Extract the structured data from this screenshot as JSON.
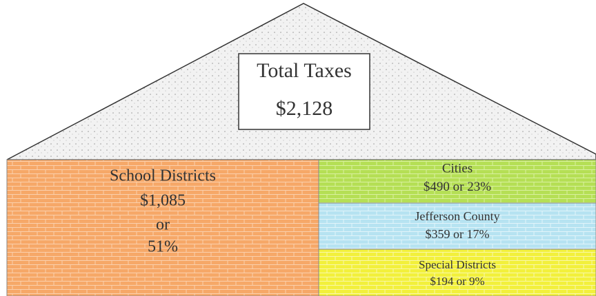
{
  "roof": {
    "title": "Total Taxes",
    "amount": "$2,128"
  },
  "blocks": [
    {
      "label": "School Districts",
      "amount": "$1,085",
      "connector": "or",
      "share": "51%"
    },
    {
      "label": "Cities",
      "amount": "$490",
      "connector": "or",
      "share": "23%"
    },
    {
      "label": "Jefferson County",
      "amount": "$359",
      "connector": "or",
      "share": "17%"
    },
    {
      "label": "Special Districts",
      "amount": "$194",
      "connector": "or",
      "share": "9%"
    }
  ]
}
